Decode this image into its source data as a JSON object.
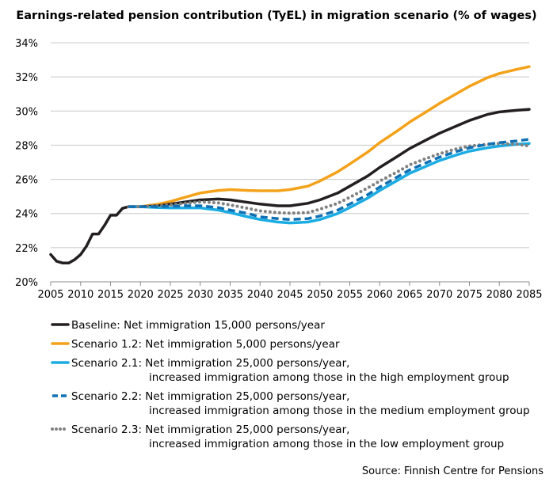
{
  "chart_data": {
    "type": "line",
    "title": "Earnings-related pension contribution (TyEL) in migration scenario (% of wages)",
    "xlabel": "",
    "ylabel": "",
    "xlim": [
      2005,
      2085
    ],
    "ylim": [
      20,
      34
    ],
    "x_ticks": [
      "2005",
      "2010",
      "2015",
      "2020",
      "2025",
      "2030",
      "2035",
      "2040",
      "2045",
      "2050",
      "2055",
      "2060",
      "2065",
      "2070",
      "2075",
      "2080",
      "2085"
    ],
    "y_ticks": [
      "20%",
      "22%",
      "24%",
      "26%",
      "28%",
      "30%",
      "32%",
      "34%"
    ],
    "grid": "horizontal",
    "legend_position": "bottom",
    "source": "Source: Finnish Centre for Pensions",
    "series": [
      {
        "name": "Baseline: Net immigration 15,000 persons/year",
        "name_line2": "",
        "color": "#231f20",
        "style": "solid",
        "points": [
          [
            2005,
            21.6
          ],
          [
            2006,
            21.2
          ],
          [
            2007,
            21.1
          ],
          [
            2008,
            21.1
          ],
          [
            2009,
            21.3
          ],
          [
            2010,
            21.6
          ],
          [
            2011,
            22.1
          ],
          [
            2012,
            22.8
          ],
          [
            2013,
            22.8
          ],
          [
            2014,
            23.3
          ],
          [
            2015,
            23.9
          ],
          [
            2016,
            23.9
          ],
          [
            2017,
            24.3
          ],
          [
            2018,
            24.4
          ],
          [
            2020,
            24.4
          ],
          [
            2023,
            24.45
          ],
          [
            2025,
            24.55
          ],
          [
            2028,
            24.7
          ],
          [
            2030,
            24.8
          ],
          [
            2033,
            24.85
          ],
          [
            2035,
            24.8
          ],
          [
            2038,
            24.65
          ],
          [
            2040,
            24.55
          ],
          [
            2043,
            24.45
          ],
          [
            2045,
            24.45
          ],
          [
            2048,
            24.6
          ],
          [
            2050,
            24.8
          ],
          [
            2053,
            25.2
          ],
          [
            2055,
            25.6
          ],
          [
            2058,
            26.2
          ],
          [
            2060,
            26.7
          ],
          [
            2063,
            27.35
          ],
          [
            2065,
            27.8
          ],
          [
            2068,
            28.35
          ],
          [
            2070,
            28.7
          ],
          [
            2073,
            29.15
          ],
          [
            2075,
            29.45
          ],
          [
            2078,
            29.8
          ],
          [
            2080,
            29.95
          ],
          [
            2083,
            30.05
          ],
          [
            2085,
            30.1
          ]
        ]
      },
      {
        "name": "Scenario 1.2: Net immigration 5,000 persons/year",
        "name_line2": "",
        "color": "#f4a21a",
        "style": "solid",
        "points": [
          [
            2018,
            24.4
          ],
          [
            2020,
            24.4
          ],
          [
            2023,
            24.55
          ],
          [
            2025,
            24.7
          ],
          [
            2028,
            25.0
          ],
          [
            2030,
            25.2
          ],
          [
            2033,
            25.35
          ],
          [
            2035,
            25.4
          ],
          [
            2038,
            25.35
          ],
          [
            2040,
            25.33
          ],
          [
            2043,
            25.33
          ],
          [
            2045,
            25.4
          ],
          [
            2048,
            25.6
          ],
          [
            2050,
            25.9
          ],
          [
            2053,
            26.45
          ],
          [
            2055,
            26.9
          ],
          [
            2058,
            27.6
          ],
          [
            2060,
            28.15
          ],
          [
            2063,
            28.85
          ],
          [
            2065,
            29.35
          ],
          [
            2068,
            30.0
          ],
          [
            2070,
            30.45
          ],
          [
            2073,
            31.05
          ],
          [
            2075,
            31.45
          ],
          [
            2078,
            31.95
          ],
          [
            2080,
            32.2
          ],
          [
            2083,
            32.45
          ],
          [
            2085,
            32.6
          ]
        ]
      },
      {
        "name": "Scenario 2.1: Net immigration 25,000 persons/year,",
        "name_line2": "increased immigration among those in the high employment group",
        "color": "#1aace3",
        "style": "solid",
        "points": [
          [
            2018,
            24.4
          ],
          [
            2020,
            24.4
          ],
          [
            2023,
            24.35
          ],
          [
            2025,
            24.33
          ],
          [
            2028,
            24.33
          ],
          [
            2030,
            24.33
          ],
          [
            2033,
            24.2
          ],
          [
            2035,
            24.05
          ],
          [
            2038,
            23.8
          ],
          [
            2040,
            23.65
          ],
          [
            2043,
            23.5
          ],
          [
            2045,
            23.45
          ],
          [
            2048,
            23.5
          ],
          [
            2050,
            23.65
          ],
          [
            2053,
            24.0
          ],
          [
            2055,
            24.35
          ],
          [
            2058,
            24.9
          ],
          [
            2060,
            25.35
          ],
          [
            2063,
            25.95
          ],
          [
            2065,
            26.35
          ],
          [
            2068,
            26.8
          ],
          [
            2070,
            27.1
          ],
          [
            2073,
            27.45
          ],
          [
            2075,
            27.65
          ],
          [
            2078,
            27.85
          ],
          [
            2080,
            27.95
          ],
          [
            2083,
            28.05
          ],
          [
            2085,
            28.1
          ]
        ]
      },
      {
        "name": "Scenario 2.2: Net immigration 25,000 persons/year,",
        "name_line2": "increased immigration among those in the medium employment group",
        "color": "#1170b3",
        "style": "dashed",
        "points": [
          [
            2018,
            24.4
          ],
          [
            2020,
            24.4
          ],
          [
            2023,
            24.4
          ],
          [
            2025,
            24.42
          ],
          [
            2028,
            24.45
          ],
          [
            2030,
            24.45
          ],
          [
            2033,
            24.35
          ],
          [
            2035,
            24.2
          ],
          [
            2038,
            24.0
          ],
          [
            2040,
            23.8
          ],
          [
            2043,
            23.7
          ],
          [
            2045,
            23.65
          ],
          [
            2048,
            23.7
          ],
          [
            2050,
            23.85
          ],
          [
            2053,
            24.2
          ],
          [
            2055,
            24.55
          ],
          [
            2058,
            25.1
          ],
          [
            2060,
            25.55
          ],
          [
            2063,
            26.15
          ],
          [
            2065,
            26.55
          ],
          [
            2068,
            27.0
          ],
          [
            2070,
            27.3
          ],
          [
            2073,
            27.65
          ],
          [
            2075,
            27.85
          ],
          [
            2078,
            28.05
          ],
          [
            2080,
            28.15
          ],
          [
            2083,
            28.25
          ],
          [
            2085,
            28.35
          ]
        ]
      },
      {
        "name": "Scenario 2.3: Net immigration 25,000 persons/year,",
        "name_line2": "increased immigration among those in the low employment group",
        "color": "#808080",
        "style": "dotted",
        "points": [
          [
            2018,
            24.4
          ],
          [
            2020,
            24.4
          ],
          [
            2023,
            24.45
          ],
          [
            2025,
            24.5
          ],
          [
            2028,
            24.62
          ],
          [
            2030,
            24.68
          ],
          [
            2033,
            24.62
          ],
          [
            2035,
            24.5
          ],
          [
            2038,
            24.3
          ],
          [
            2040,
            24.15
          ],
          [
            2043,
            24.05
          ],
          [
            2045,
            24.02
          ],
          [
            2048,
            24.05
          ],
          [
            2050,
            24.25
          ],
          [
            2053,
            24.6
          ],
          [
            2055,
            24.95
          ],
          [
            2058,
            25.5
          ],
          [
            2060,
            25.9
          ],
          [
            2063,
            26.45
          ],
          [
            2065,
            26.85
          ],
          [
            2068,
            27.25
          ],
          [
            2070,
            27.5
          ],
          [
            2073,
            27.8
          ],
          [
            2075,
            27.95
          ],
          [
            2078,
            28.05
          ],
          [
            2080,
            28.1
          ],
          [
            2083,
            28.05
          ],
          [
            2085,
            27.95
          ]
        ]
      }
    ]
  }
}
